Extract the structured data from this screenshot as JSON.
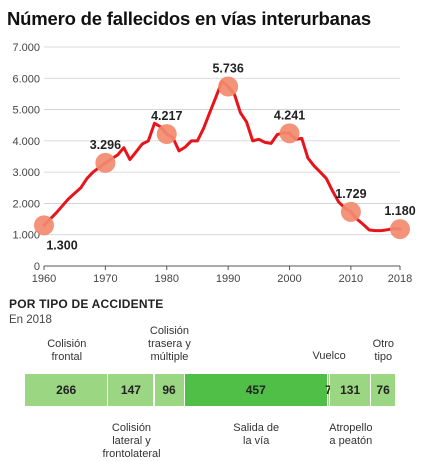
{
  "title": "Número de fallecidos en vías interurbanas",
  "chart_data": [
    {
      "type": "line",
      "ylim": [
        0,
        7000
      ],
      "xlim": [
        1960,
        2018
      ],
      "y_ticks": [
        "7.000",
        "6.000",
        "5.000",
        "4.000",
        "3.000",
        "2.000",
        "1.000",
        "0"
      ],
      "y_tick_values": [
        7000,
        6000,
        5000,
        4000,
        3000,
        2000,
        1000,
        0
      ],
      "x_ticks": [
        "1960",
        "1970",
        "1980",
        "1990",
        "2000",
        "2010",
        "2018"
      ],
      "x_tick_values": [
        1960,
        1970,
        1980,
        1990,
        2000,
        2010,
        2018
      ],
      "grid": true,
      "line_color": "#e8141c",
      "marker_color": "#f28a6e",
      "series": [
        {
          "x": [
            1960,
            1962,
            1964,
            1966,
            1967,
            1968,
            1970,
            1972,
            1973,
            1974,
            1975,
            1976,
            1977,
            1978,
            1979,
            1980,
            1981,
            1982,
            1983,
            1984,
            1985,
            1986,
            1987,
            1988,
            1989,
            1990,
            1991,
            1992,
            1993,
            1994,
            1995,
            1996,
            1997,
            1998,
            1999,
            2000,
            2001,
            2002,
            2003,
            2004,
            2005,
            2006,
            2007,
            2008,
            2009,
            2010,
            2011,
            2012,
            2013,
            2014,
            2015,
            2016,
            2017,
            2018
          ],
          "y": [
            1300,
            1700,
            2150,
            2500,
            2800,
            3000,
            3296,
            3550,
            3780,
            3400,
            3650,
            3900,
            4000,
            4560,
            4450,
            4217,
            4100,
            3680,
            3800,
            4000,
            4000,
            4400,
            4900,
            5400,
            5900,
            5736,
            5500,
            4900,
            4600,
            4000,
            4050,
            3950,
            3920,
            4200,
            4250,
            4241,
            4050,
            4080,
            3450,
            3200,
            3000,
            2800,
            2400,
            2050,
            1850,
            1729,
            1500,
            1330,
            1150,
            1130,
            1130,
            1160,
            1200,
            1180
          ]
        }
      ],
      "labeled_points": [
        {
          "x": 1960,
          "y": 1300,
          "label": "1.300"
        },
        {
          "x": 1970,
          "y": 3296,
          "label": "3.296"
        },
        {
          "x": 1980,
          "y": 4217,
          "label": "4.217"
        },
        {
          "x": 1990,
          "y": 5736,
          "label": "5.736"
        },
        {
          "x": 2000,
          "y": 4241,
          "label": "4.241"
        },
        {
          "x": 2010,
          "y": 1729,
          "label": "1.729"
        },
        {
          "x": 2018,
          "y": 1180,
          "label": "1.180"
        }
      ]
    },
    {
      "type": "bar",
      "title": "POR TIPO DE ACCIDENTE",
      "subtitle": "En 2018",
      "stacked": true,
      "categories": [
        "Colisión frontal",
        "Colisión lateral y frontolateral",
        "Colisión trasera y múltiple",
        "Salida de la vía",
        "Vuelco",
        "Atropello a peatón",
        "Otro tipo"
      ],
      "values": [
        266,
        147,
        96,
        457,
        7,
        131,
        76
      ],
      "category_lines": [
        [
          "Colisión",
          "frontal"
        ],
        [
          "Colisión",
          "lateral y",
          "frontolateral"
        ],
        [
          "Colisión",
          "trasera y",
          "múltiple"
        ],
        [
          "Salida de",
          "la vía"
        ],
        [
          "Vuelco"
        ],
        [
          "Atropello",
          "a peatón"
        ],
        [
          "Otro",
          "tipo"
        ]
      ],
      "colors": [
        "#9bd683",
        "#9bd683",
        "#9bd683",
        "#4fbf48",
        "#9bd683",
        "#9bd683",
        "#9bd683"
      ]
    }
  ]
}
